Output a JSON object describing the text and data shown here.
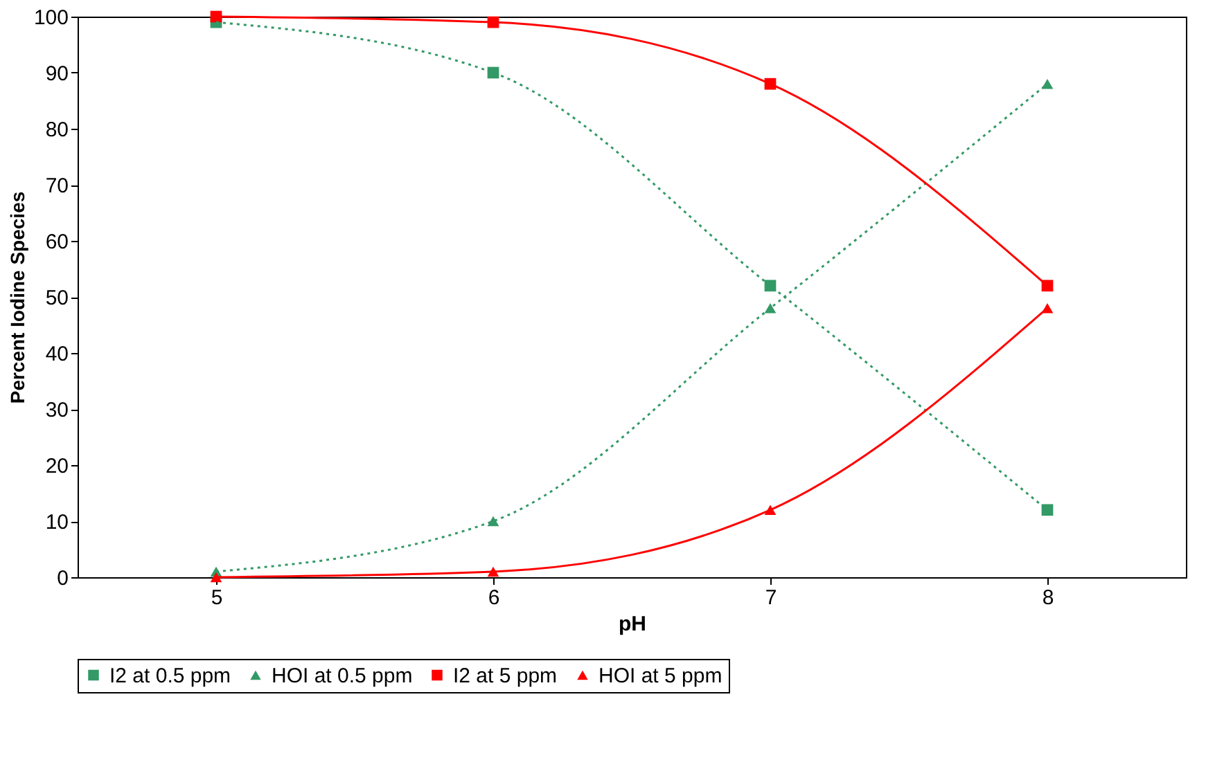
{
  "chart_data": {
    "type": "line",
    "xlabel": "pH",
    "ylabel": "Percent Iodine Species",
    "categories": [
      "5",
      "6",
      "7",
      "8"
    ],
    "series": [
      {
        "name": "I2 at 0.5 ppm",
        "color": "#339966",
        "values": [
          99,
          90,
          52,
          12
        ],
        "marker": "square",
        "line_style": "dotted"
      },
      {
        "name": "HOI at 0.5 ppm",
        "color": "#339966",
        "values": [
          1,
          10,
          48,
          88
        ],
        "marker": "triangle",
        "line_style": "dotted"
      },
      {
        "name": "I2 at 5 ppm",
        "color": "#ff0000",
        "values": [
          100,
          99,
          88,
          52
        ],
        "marker": "square",
        "line_style": "solid"
      },
      {
        "name": "HOI at 5 ppm",
        "color": "#ff0000",
        "values": [
          0,
          1,
          12,
          48
        ],
        "marker": "triangle",
        "line_style": "solid"
      }
    ],
    "ylim": [
      0,
      100
    ],
    "yticks": [
      0,
      10,
      20,
      30,
      40,
      50,
      60,
      70,
      80,
      90,
      100
    ],
    "grid": false,
    "legend": "bottom"
  }
}
